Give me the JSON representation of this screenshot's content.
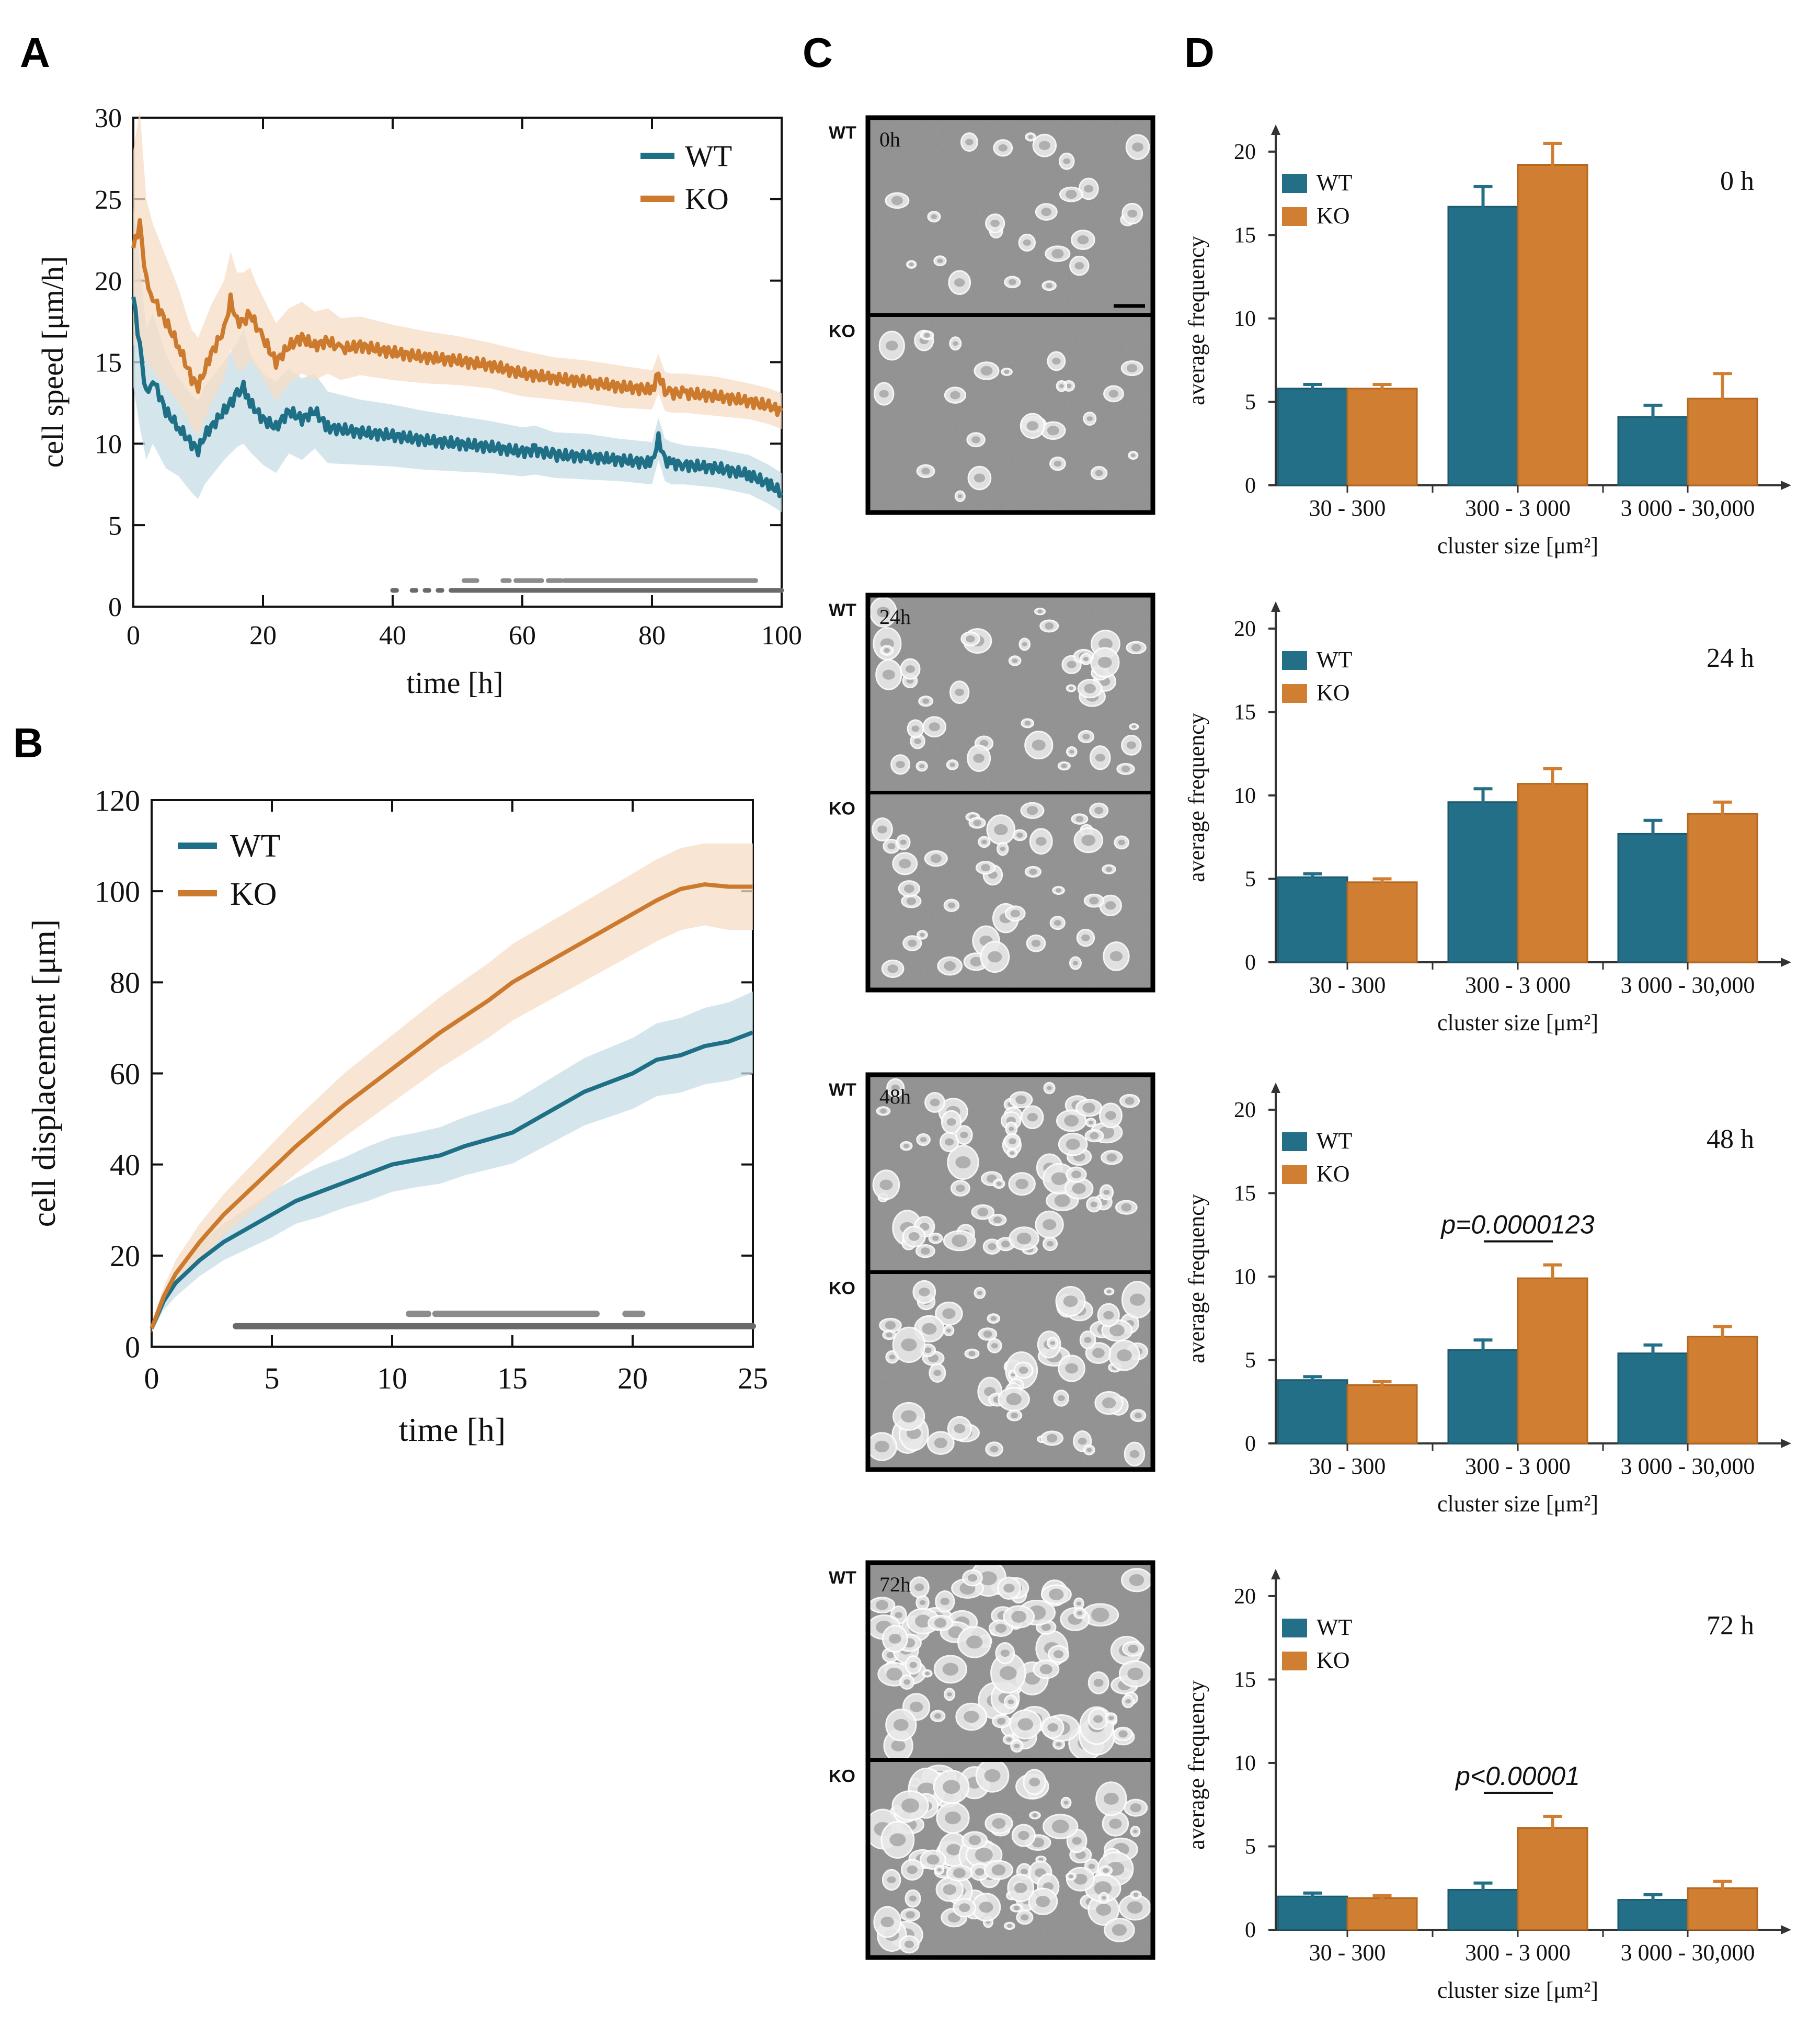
{
  "colors": {
    "wt": "#1f6f87",
    "ko": "#cc7a2e",
    "wt_band": "#c6dde6",
    "ko_band": "#f7dcc4",
    "bar_wt": "#246f88",
    "bar_ko": "#d07f32",
    "sig": "#8c8c8c",
    "sig_dark": "#6a6a6a"
  },
  "panels": {
    "A": "A",
    "B": "B",
    "C": "C",
    "D": "D"
  },
  "legend": {
    "wt": "WT",
    "ko": "KO"
  },
  "chart_data": [
    {
      "panel": "A",
      "type": "line",
      "xlabel": "time [h]",
      "ylabel": "cell speed [μm/h]",
      "xlim": [
        0,
        100
      ],
      "ylim": [
        0,
        30
      ],
      "xticks": [
        0,
        20,
        40,
        60,
        80,
        100
      ],
      "yticks": [
        0,
        5,
        10,
        15,
        20,
        25,
        30
      ],
      "series": [
        {
          "name": "WT",
          "x": [
            0,
            1,
            2,
            3,
            5,
            7,
            8,
            9,
            10,
            11,
            12,
            14,
            16,
            17,
            18,
            20,
            22,
            24,
            26,
            28,
            30,
            35,
            40,
            45,
            50,
            55,
            60,
            62,
            65,
            70,
            75,
            80,
            81,
            82,
            83,
            85,
            90,
            95,
            98,
            100
          ],
          "y": [
            19,
            16,
            13,
            14,
            12,
            11,
            10.5,
            10,
            9.6,
            10.5,
            11,
            12,
            13,
            13.5,
            12.5,
            11.5,
            11,
            12,
            11.5,
            12,
            11,
            10.7,
            10.5,
            10.2,
            10,
            9.8,
            9.5,
            9.6,
            9.3,
            9.2,
            9,
            8.8,
            10.3,
            9,
            8.8,
            8.7,
            8.5,
            8.1,
            7.5,
            7
          ],
          "band": [
            5.5,
            5,
            4,
            4,
            3.5,
            3,
            3,
            3,
            3,
            3,
            3,
            3,
            3.2,
            3.5,
            3,
            2.8,
            2.8,
            2.6,
            2.5,
            2.3,
            2.2,
            2,
            1.9,
            1.8,
            1.7,
            1.6,
            1.5,
            1.5,
            1.4,
            1.4,
            1.3,
            1.3,
            1.3,
            1.3,
            1.3,
            1.2,
            1.2,
            1.2,
            1.2,
            1.2
          ]
        },
        {
          "name": "KO",
          "x": [
            0,
            1,
            2,
            3,
            5,
            7,
            8,
            9,
            10,
            11,
            12,
            14,
            15,
            16,
            17,
            18,
            19,
            20,
            22,
            24,
            26,
            28,
            30,
            32,
            35,
            40,
            45,
            50,
            55,
            60,
            65,
            70,
            75,
            80,
            81,
            82,
            83,
            85,
            90,
            95,
            98,
            100
          ],
          "y": [
            22,
            23.5,
            20,
            19,
            17.5,
            16,
            15,
            14,
            13.5,
            14.5,
            15.5,
            17,
            18.8,
            17.5,
            17.5,
            18,
            17.2,
            16.5,
            15,
            16,
            16.5,
            16,
            16.3,
            15.8,
            16,
            15.6,
            15.3,
            15.1,
            14.8,
            14.3,
            14,
            13.8,
            13.5,
            13.3,
            14.3,
            13.2,
            13.1,
            13.1,
            12.9,
            12.6,
            12.3,
            12
          ],
          "band": [
            6,
            7,
            5,
            4.5,
            4,
            3.5,
            3.2,
            3,
            3,
            3,
            3,
            3,
            3,
            3,
            3,
            2.8,
            2.6,
            2.5,
            2.4,
            2.3,
            2.2,
            2.1,
            2,
            1.9,
            1.8,
            1.7,
            1.6,
            1.5,
            1.4,
            1.4,
            1.3,
            1.3,
            1.3,
            1.2,
            1.2,
            1.2,
            1.2,
            1.2,
            1.2,
            1.1,
            1.1,
            1.1
          ]
        }
      ],
      "significance": [
        {
          "y": 1.0,
          "segments": [
            [
              40,
              40.6
            ],
            [
              43,
              43.6
            ],
            [
              45,
              45.6
            ],
            [
              47,
              47.6
            ],
            [
              49,
              100
            ]
          ]
        },
        {
          "y": 1.6,
          "segments": [
            [
              51,
              53
            ],
            [
              57,
              58
            ],
            [
              59,
              63
            ],
            [
              64,
              66
            ],
            [
              66.5,
              96
            ]
          ]
        }
      ]
    },
    {
      "panel": "B",
      "type": "line",
      "xlabel": "time [h]",
      "ylabel": "cell displacement [μm]",
      "xlim": [
        0,
        25
      ],
      "ylim": [
        0,
        120
      ],
      "xticks": [
        0,
        5,
        10,
        15,
        20,
        25
      ],
      "yticks": [
        0,
        20,
        40,
        60,
        80,
        100,
        120
      ],
      "series": [
        {
          "name": "WT",
          "x": [
            0,
            0.5,
            1,
            2,
            3,
            4,
            5,
            6,
            7,
            8,
            9,
            10,
            11,
            12,
            13,
            14,
            15,
            16,
            17,
            18,
            19,
            20,
            21,
            22,
            23,
            24,
            25
          ],
          "y": [
            4,
            10,
            14,
            19,
            23,
            26,
            29,
            32,
            34,
            36,
            38,
            40,
            41,
            42,
            44,
            45.5,
            47,
            50,
            53,
            56,
            58,
            60,
            63,
            64,
            66,
            67,
            69
          ],
          "band": [
            1,
            2,
            3,
            3.5,
            4,
            4.5,
            5,
            5,
            5.5,
            5.5,
            6,
            6,
            6,
            6.2,
            6.4,
            6.6,
            6.8,
            7,
            7.2,
            7.4,
            7.6,
            7.8,
            8,
            8.2,
            8.4,
            8.6,
            9
          ]
        },
        {
          "name": "KO",
          "x": [
            0,
            0.5,
            1,
            2,
            3,
            4,
            5,
            6,
            7,
            8,
            9,
            10,
            11,
            12,
            13,
            14,
            15,
            16,
            17,
            18,
            19,
            20,
            21,
            22,
            23,
            24,
            25
          ],
          "y": [
            4,
            11,
            16,
            23,
            29,
            34,
            39,
            44,
            48.5,
            53,
            57,
            61,
            65,
            69,
            72.5,
            76,
            80,
            83,
            86,
            89,
            92,
            95,
            98,
            100.5,
            101.5,
            101,
            101
          ],
          "band": [
            1,
            2,
            3,
            4,
            4.5,
            5,
            5.5,
            6,
            6.5,
            7,
            7.2,
            7.4,
            7.6,
            7.8,
            8,
            8.2,
            8.4,
            8.5,
            8.6,
            8.7,
            8.8,
            8.9,
            9,
            9,
            9,
            9.5,
            9.5
          ]
        }
      ],
      "significance": [
        {
          "y": 4.5,
          "segments": [
            [
              3.5,
              25
            ]
          ]
        },
        {
          "y": 7.2,
          "segments": [
            [
              10.7,
              11.5
            ],
            [
              11.8,
              18.5
            ],
            [
              19.7,
              20.4
            ]
          ]
        }
      ]
    },
    {
      "panel": "D",
      "type": "bar",
      "timepoint": "0 h",
      "categories": [
        "30 - 300",
        "300 - 3 000",
        "3 000 - 30,000"
      ],
      "series": [
        {
          "name": "WT",
          "values": [
            5.8,
            16.7,
            4.1
          ],
          "errors": [
            0.25,
            1.2,
            0.7
          ]
        },
        {
          "name": "KO",
          "values": [
            5.8,
            19.2,
            5.2
          ],
          "errors": [
            0.25,
            1.3,
            1.5
          ]
        }
      ],
      "xlabel": "cluster size [μm²]",
      "ylabel": "average frequency",
      "ylim": [
        0,
        21
      ],
      "yticks": [
        0,
        5,
        10,
        15,
        20
      ],
      "pvalue": ""
    },
    {
      "panel": "D",
      "type": "bar",
      "timepoint": "24 h",
      "categories": [
        "30 - 300",
        "300 - 3 000",
        "3 000 - 30,000"
      ],
      "series": [
        {
          "name": "WT",
          "values": [
            5.1,
            9.6,
            7.7
          ],
          "errors": [
            0.2,
            0.8,
            0.8
          ]
        },
        {
          "name": "KO",
          "values": [
            4.8,
            10.7,
            8.9
          ],
          "errors": [
            0.2,
            0.9,
            0.7
          ]
        }
      ],
      "xlabel": "cluster size [μm²]",
      "ylabel": "average frequency",
      "ylim": [
        0,
        21
      ],
      "yticks": [
        0,
        5,
        10,
        15,
        20
      ],
      "pvalue": ""
    },
    {
      "panel": "D",
      "type": "bar",
      "timepoint": "48 h",
      "categories": [
        "30 - 300",
        "300 - 3 000",
        "3 000 - 30,000"
      ],
      "series": [
        {
          "name": "WT",
          "values": [
            3.8,
            5.6,
            5.4
          ],
          "errors": [
            0.2,
            0.6,
            0.5
          ]
        },
        {
          "name": "KO",
          "values": [
            3.5,
            9.9,
            6.4
          ],
          "errors": [
            0.2,
            0.8,
            0.6
          ]
        }
      ],
      "xlabel": "cluster size [μm²]",
      "ylabel": "average frequency",
      "ylim": [
        0,
        21
      ],
      "yticks": [
        0,
        5,
        10,
        15,
        20
      ],
      "pvalue": "p=0.0000123"
    },
    {
      "panel": "D",
      "type": "bar",
      "timepoint": "72 h",
      "categories": [
        "30 - 300",
        "300 - 3 000",
        "3 000 - 30,000"
      ],
      "series": [
        {
          "name": "WT",
          "values": [
            2.0,
            2.4,
            1.8
          ],
          "errors": [
            0.2,
            0.4,
            0.3
          ]
        },
        {
          "name": "KO",
          "values": [
            1.9,
            6.1,
            2.5
          ],
          "errors": [
            0.15,
            0.7,
            0.4
          ]
        }
      ],
      "xlabel": "cluster size [μm²]",
      "ylabel": "average frequency",
      "ylim": [
        0,
        21
      ],
      "yticks": [
        0,
        5,
        10,
        15,
        20
      ],
      "pvalue": "p<0.00001"
    }
  ],
  "micrographs": [
    {
      "time": "0h",
      "wt_label": "WT",
      "ko_label": "KO",
      "density": 0.15
    },
    {
      "time": "24h",
      "wt_label": "WT",
      "ko_label": "KO",
      "density": 0.35
    },
    {
      "time": "48h",
      "wt_label": "WT",
      "ko_label": "KO",
      "density": 0.6
    },
    {
      "time": "72h",
      "wt_label": "WT",
      "ko_label": "KO",
      "density": 0.9
    }
  ]
}
